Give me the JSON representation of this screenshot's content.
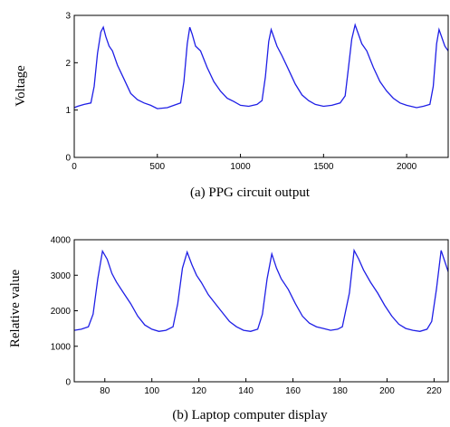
{
  "chart_data": [
    {
      "type": "line",
      "title": "",
      "caption": "(a) PPG circuit output",
      "xlabel": "",
      "ylabel": "Voltage",
      "xlim": [
        0,
        2250
      ],
      "ylim": [
        0,
        3
      ],
      "xticks": [
        0,
        500,
        1000,
        1500,
        2000
      ],
      "yticks": [
        0,
        1,
        2,
        3
      ],
      "grid": false,
      "series": [
        {
          "color": "#1f1fe6",
          "x": [
            0,
            20,
            60,
            100,
            120,
            140,
            160,
            175,
            190,
            210,
            230,
            260,
            300,
            340,
            380,
            420,
            460,
            500,
            560,
            600,
            640,
            660,
            680,
            695,
            710,
            730,
            760,
            800,
            840,
            880,
            920,
            960,
            1000,
            1050,
            1100,
            1130,
            1150,
            1170,
            1185,
            1200,
            1220,
            1250,
            1290,
            1330,
            1370,
            1410,
            1450,
            1500,
            1550,
            1600,
            1630,
            1650,
            1670,
            1690,
            1710,
            1730,
            1760,
            1800,
            1840,
            1880,
            1920,
            1960,
            2000,
            2060,
            2100,
            2140,
            2160,
            2180,
            2195,
            2210,
            2230,
            2250
          ],
          "y": [
            1.05,
            1.08,
            1.12,
            1.15,
            1.5,
            2.2,
            2.65,
            2.75,
            2.55,
            2.35,
            2.25,
            1.95,
            1.65,
            1.35,
            1.22,
            1.15,
            1.1,
            1.03,
            1.05,
            1.1,
            1.15,
            1.6,
            2.4,
            2.75,
            2.6,
            2.35,
            2.25,
            1.9,
            1.6,
            1.4,
            1.25,
            1.18,
            1.1,
            1.08,
            1.12,
            1.2,
            1.7,
            2.45,
            2.7,
            2.55,
            2.35,
            2.15,
            1.85,
            1.55,
            1.32,
            1.2,
            1.12,
            1.08,
            1.1,
            1.15,
            1.3,
            1.9,
            2.5,
            2.8,
            2.6,
            2.4,
            2.25,
            1.9,
            1.6,
            1.4,
            1.25,
            1.15,
            1.1,
            1.05,
            1.08,
            1.12,
            1.5,
            2.4,
            2.7,
            2.55,
            2.35,
            2.25
          ]
        }
      ]
    },
    {
      "type": "line",
      "title": "",
      "caption": "(b) Laptop computer display",
      "xlabel": "",
      "ylabel": "Relative value",
      "xlim": [
        67,
        226
      ],
      "ylim": [
        0,
        4000
      ],
      "xticks": [
        80,
        100,
        120,
        140,
        160,
        180,
        200,
        220
      ],
      "yticks": [
        0,
        1000,
        2000,
        3000,
        4000
      ],
      "grid": false,
      "series": [
        {
          "color": "#1f1fe6",
          "x": [
            67,
            70,
            73,
            75,
            77,
            79,
            81,
            83,
            85,
            88,
            91,
            94,
            97,
            100,
            103,
            106,
            109,
            111,
            113,
            115,
            117,
            119,
            121,
            124,
            127,
            130,
            133,
            136,
            139,
            142,
            145,
            147,
            149,
            151,
            153,
            155,
            158,
            161,
            164,
            167,
            170,
            173,
            176,
            179,
            181,
            184,
            186,
            188,
            190,
            193,
            196,
            199,
            202,
            205,
            208,
            211,
            214,
            217,
            219,
            221,
            223,
            226
          ],
          "y": [
            1450,
            1480,
            1550,
            1900,
            2900,
            3680,
            3450,
            3050,
            2800,
            2500,
            2200,
            1850,
            1600,
            1480,
            1420,
            1450,
            1550,
            2200,
            3200,
            3650,
            3300,
            3000,
            2800,
            2450,
            2200,
            1950,
            1700,
            1550,
            1450,
            1420,
            1480,
            1900,
            2900,
            3600,
            3200,
            2900,
            2600,
            2200,
            1850,
            1650,
            1550,
            1500,
            1450,
            1480,
            1550,
            2500,
            3700,
            3450,
            3150,
            2800,
            2500,
            2150,
            1850,
            1620,
            1500,
            1450,
            1420,
            1480,
            1700,
            2600,
            3700,
            3100
          ]
        }
      ]
    }
  ]
}
